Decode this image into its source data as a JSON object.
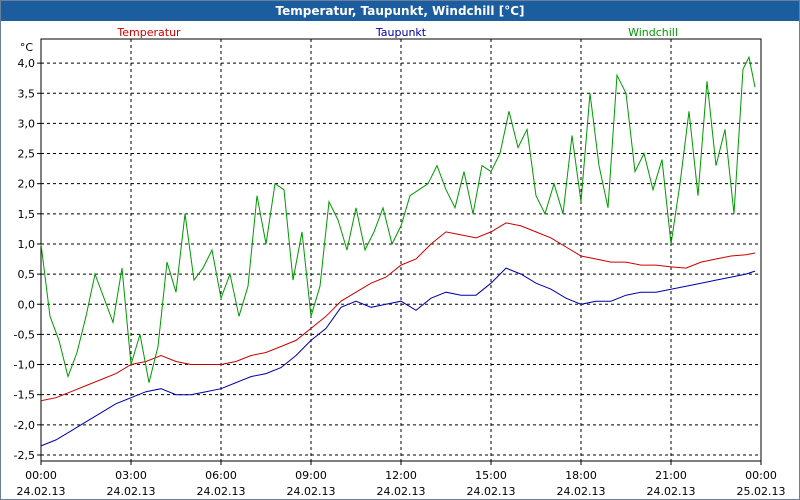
{
  "title": "Temperatur, Taupunkt, Windchill [°C]",
  "colors": {
    "titlebar": "#1b5d9e",
    "Temperatur": "#cc0000",
    "Taupunkt": "#0000aa",
    "Windchill": "#009900",
    "grid": "#000000"
  },
  "chart_data": {
    "type": "line",
    "title": "Temperatur, Taupunkt, Windchill [°C]",
    "unit_label": "°C",
    "xlabel": "",
    "ylabel": "°C",
    "ylim": [
      -2.6,
      4.4
    ],
    "yticks": [
      4.0,
      3.5,
      3.0,
      2.5,
      2.0,
      1.5,
      1.0,
      0.5,
      0.0,
      -0.5,
      -1.0,
      -1.5,
      -2.0,
      -2.5
    ],
    "ytick_labels": [
      "4,0",
      "3,5",
      "3,0",
      "2,5",
      "2,0",
      "1,5",
      "1,0",
      "0,5",
      "0,0",
      "-0,5",
      "-1,0",
      "-1,5",
      "-2,0",
      "-2,5"
    ],
    "xlim_hours": [
      0,
      24
    ],
    "xticks": [
      {
        "h": 0,
        "time": "00:00",
        "date": "24.02.13"
      },
      {
        "h": 3,
        "time": "03:00",
        "date": "24.02.13"
      },
      {
        "h": 6,
        "time": "06:00",
        "date": "24.02.13"
      },
      {
        "h": 9,
        "time": "09:00",
        "date": "24.02.13"
      },
      {
        "h": 12,
        "time": "12:00",
        "date": "24.02.13"
      },
      {
        "h": 15,
        "time": "15:00",
        "date": "24.02.13"
      },
      {
        "h": 18,
        "time": "18:00",
        "date": "24.02.13"
      },
      {
        "h": 21,
        "time": "21:00",
        "date": "24.02.13"
      },
      {
        "h": 24,
        "time": "00:00",
        "date": "25.02.13"
      }
    ],
    "grid": true,
    "legend_placement": "top",
    "series": [
      {
        "name": "Temperatur",
        "color": "#cc0000",
        "x": [
          0,
          0.5,
          1,
          1.5,
          2,
          2.5,
          3,
          3.5,
          4,
          4.5,
          5,
          5.5,
          6,
          6.5,
          7,
          7.5,
          8,
          8.5,
          9,
          9.5,
          10,
          10.5,
          11,
          11.5,
          12,
          12.5,
          13,
          13.5,
          14,
          14.5,
          15,
          15.5,
          16,
          16.5,
          17,
          17.5,
          18,
          18.5,
          19,
          19.5,
          20,
          20.5,
          21,
          21.5,
          22,
          22.5,
          23,
          23.5,
          23.8
        ],
        "y": [
          -1.6,
          -1.55,
          -1.45,
          -1.35,
          -1.25,
          -1.15,
          -1.0,
          -0.95,
          -0.85,
          -0.95,
          -1.0,
          -1.0,
          -1.0,
          -0.95,
          -0.85,
          -0.8,
          -0.7,
          -0.6,
          -0.4,
          -0.2,
          0.05,
          0.2,
          0.35,
          0.45,
          0.65,
          0.75,
          1.0,
          1.2,
          1.15,
          1.1,
          1.2,
          1.35,
          1.3,
          1.2,
          1.1,
          0.95,
          0.8,
          0.75,
          0.7,
          0.7,
          0.65,
          0.65,
          0.62,
          0.6,
          0.7,
          0.75,
          0.8,
          0.82,
          0.85
        ]
      },
      {
        "name": "Taupunkt",
        "color": "#0000aa",
        "x": [
          0,
          0.5,
          1,
          1.5,
          2,
          2.5,
          3,
          3.5,
          4,
          4.5,
          5,
          5.5,
          6,
          6.5,
          7,
          7.5,
          8,
          8.5,
          9,
          9.5,
          10,
          10.5,
          11,
          11.5,
          12,
          12.5,
          13,
          13.5,
          14,
          14.5,
          15,
          15.5,
          16,
          16.5,
          17,
          17.5,
          18,
          18.5,
          19,
          19.5,
          20,
          20.5,
          21,
          21.5,
          22,
          22.5,
          23,
          23.5,
          23.8
        ],
        "y": [
          -2.35,
          -2.25,
          -2.1,
          -1.95,
          -1.8,
          -1.65,
          -1.55,
          -1.45,
          -1.4,
          -1.5,
          -1.5,
          -1.45,
          -1.4,
          -1.3,
          -1.2,
          -1.15,
          -1.05,
          -0.85,
          -0.6,
          -0.4,
          -0.05,
          0.05,
          -0.05,
          0.0,
          0.05,
          -0.1,
          0.1,
          0.2,
          0.15,
          0.15,
          0.35,
          0.6,
          0.5,
          0.35,
          0.25,
          0.1,
          0.0,
          0.05,
          0.05,
          0.15,
          0.2,
          0.2,
          0.25,
          0.3,
          0.35,
          0.4,
          0.45,
          0.5,
          0.55
        ]
      },
      {
        "name": "Windchill",
        "color": "#009900",
        "x": [
          0,
          0.3,
          0.6,
          0.9,
          1.2,
          1.5,
          1.8,
          2.1,
          2.4,
          2.7,
          3.0,
          3.3,
          3.6,
          3.9,
          4.2,
          4.5,
          4.8,
          5.1,
          5.4,
          5.7,
          6.0,
          6.3,
          6.6,
          6.9,
          7.2,
          7.5,
          7.8,
          8.1,
          8.4,
          8.7,
          9.0,
          9.3,
          9.6,
          9.9,
          10.2,
          10.5,
          10.8,
          11.1,
          11.4,
          11.7,
          12.0,
          12.3,
          12.6,
          12.9,
          13.2,
          13.5,
          13.8,
          14.1,
          14.4,
          14.7,
          15.0,
          15.3,
          15.6,
          15.9,
          16.2,
          16.5,
          16.8,
          17.1,
          17.4,
          17.7,
          18.0,
          18.3,
          18.6,
          18.9,
          19.2,
          19.5,
          19.8,
          20.1,
          20.4,
          20.7,
          21.0,
          21.3,
          21.6,
          21.9,
          22.2,
          22.5,
          22.8,
          23.1,
          23.4,
          23.6,
          23.8
        ],
        "y": [
          1.0,
          -0.2,
          -0.6,
          -1.2,
          -0.8,
          -0.2,
          0.5,
          0.1,
          -0.3,
          0.6,
          -1.0,
          -0.5,
          -1.3,
          -0.7,
          0.7,
          0.2,
          1.5,
          0.4,
          0.6,
          0.9,
          0.1,
          0.5,
          -0.2,
          0.3,
          1.8,
          1.0,
          2.0,
          1.9,
          0.4,
          1.2,
          -0.2,
          0.3,
          1.7,
          1.4,
          0.9,
          1.6,
          0.9,
          1.2,
          1.6,
          1.0,
          1.3,
          1.8,
          1.9,
          2.0,
          2.3,
          1.9,
          1.6,
          2.2,
          1.5,
          2.3,
          2.2,
          2.5,
          3.2,
          2.6,
          2.9,
          1.8,
          1.5,
          2.0,
          1.5,
          2.8,
          1.7,
          3.5,
          2.3,
          1.6,
          3.8,
          3.5,
          2.2,
          2.5,
          1.9,
          2.4,
          1.0,
          2.0,
          3.2,
          1.8,
          3.7,
          2.3,
          2.9,
          1.5,
          3.9,
          4.1,
          3.6
        ]
      }
    ]
  }
}
